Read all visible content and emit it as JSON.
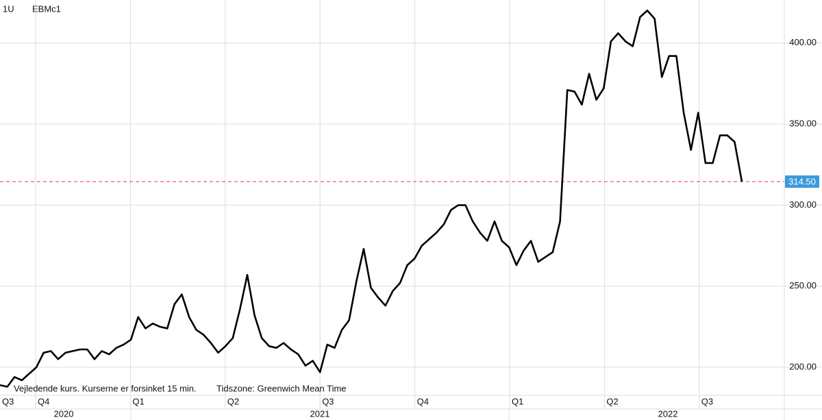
{
  "chart_data": {
    "type": "line",
    "ticker_prefix": "1U",
    "title": "EBMc1",
    "footnote": "Vejledende kurs. Kurserne er forsinket 15 min.",
    "timezone": "Tidszone: Greenwich Mean Time",
    "quarters": [
      "Q3",
      "Q4",
      "Q1",
      "Q2",
      "Q3",
      "Q4",
      "Q1",
      "Q2",
      "Q3"
    ],
    "years": [
      "2020",
      "2021",
      "2022"
    ],
    "color": "#000000",
    "values": [
      189,
      188,
      194,
      192,
      196,
      200,
      209,
      210,
      205,
      209,
      210,
      211,
      211,
      205,
      210,
      208,
      212,
      214,
      217,
      231,
      224,
      227,
      225,
      224,
      239,
      245,
      231,
      223,
      220,
      215,
      209,
      213,
      218,
      236,
      257,
      232,
      218,
      213,
      212,
      215,
      211,
      208,
      201,
      204,
      197,
      214,
      212,
      223,
      229,
      253,
      273,
      249,
      243,
      238,
      247,
      252,
      263,
      267,
      275,
      279,
      283,
      288,
      297,
      300,
      300,
      290,
      283,
      278,
      290,
      278,
      274,
      263,
      272,
      278,
      265,
      268,
      271,
      290,
      371,
      370,
      362,
      381,
      365,
      372,
      401,
      406,
      401,
      398,
      416,
      420,
      415,
      379,
      392,
      392,
      357,
      334,
      357,
      326,
      326,
      343,
      343,
      339,
      314.5
    ],
    "last_price": {
      "value": 314.5,
      "label": "314.50",
      "color": "#d9534f",
      "box_color": "#3a9ad9"
    },
    "ylim": [
      182.7,
      426.5
    ],
    "yticks": [
      {
        "value": 200,
        "label": "200.00"
      },
      {
        "value": 250,
        "label": "250.00"
      },
      {
        "value": 300,
        "label": "300.00"
      },
      {
        "value": 350,
        "label": "350.00"
      },
      {
        "value": 400,
        "label": "400.00"
      }
    ],
    "grid": true
  }
}
